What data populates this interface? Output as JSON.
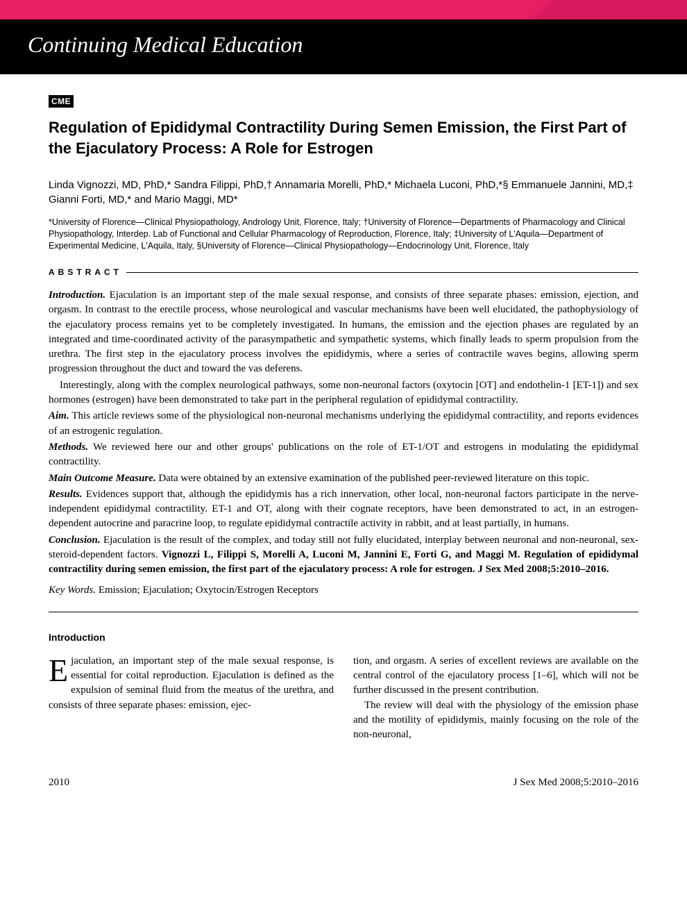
{
  "colors": {
    "pink": "#e91e63",
    "black": "#000000",
    "white": "#ffffff",
    "text": "#000000"
  },
  "header": {
    "section_title": "Continuing Medical Education",
    "font_family": "Georgia serif italic",
    "font_size_pt": 32
  },
  "badge": {
    "text": "CME",
    "bg": "#000000",
    "fg": "#ffffff"
  },
  "article": {
    "title": "Regulation of Epididymal Contractility During Semen Emission, the First Part of the Ejaculatory Process: A Role for Estrogen",
    "title_fontsize_pt": 22,
    "title_weight": "bold"
  },
  "authors_line": "Linda Vignozzi, MD, PhD,* Sandra Filippi, PhD,† Annamaria Morelli, PhD,* Michaela Luconi, PhD,*§ Emmanuele Jannini, MD,‡ Gianni Forti, MD,* and Mario Maggi, MD*",
  "affiliations": "*University of Florence—Clinical Physiopathology, Andrology Unit, Florence, Italy; †University of Florence—Departments of Pharmacology and Clinical Physiopathology, Interdep. Lab of Functional and Cellular Pharmacology of Reproduction, Florence, Italy; ‡University of L'Aquila—Department of Experimental Medicine, L'Aquila, Italy, §University of Florence—Clinical Physiopathology—Endocrinology Unit, Florence, Italy",
  "abstract": {
    "heading": "ABSTRACT",
    "sections": {
      "introduction_label": "Introduction.",
      "introduction_text": " Ejaculation is an important step of the male sexual response, and consists of three separate phases: emission, ejection, and orgasm. In contrast to the erectile process, whose neurological and vascular mechanisms have been well elucidated, the pathophysiology of the ejaculatory process remains yet to be completely investigated. In humans, the emission and the ejection phases are regulated by an integrated and time-coordinated activity of the parasympathetic and sympathetic systems, which finally leads to sperm propulsion from the urethra. The first step in the ejaculatory process involves the epididymis, where a series of contractile waves begins, allowing sperm progression throughout the duct and toward the vas deferens.",
      "introduction_para2": "Interestingly, along with the complex neurological pathways, some non-neuronal factors (oxytocin [OT] and endothelin-1 [ET-1]) and sex hormones (estrogen) have been demonstrated to take part in the peripheral regulation of epididymal contractility.",
      "aim_label": "Aim.",
      "aim_text": " This article reviews some of the physiological non-neuronal mechanisms underlying the epididymal contractility, and reports evidences of an estrogenic regulation.",
      "methods_label": "Methods.",
      "methods_text": " We reviewed here our and other groups' publications on the role of ET-1/OT and estrogens in modulating the epididymal contractility.",
      "outcome_label": "Main Outcome Measure.",
      "outcome_text": " Data were obtained by an extensive examination of the published peer-reviewed literature on this topic.",
      "results_label": "Results.",
      "results_text": " Evidences support that, although the epididymis has a rich innervation, other local, non-neuronal factors participate in the nerve-independent epididymal contractility. ET-1 and OT, along with their cognate receptors, have been demonstrated to act, in an estrogen-dependent autocrine and paracrine loop, to regulate epididymal contractile activity in rabbit, and at least partially, in humans.",
      "conclusion_label": "Conclusion.",
      "conclusion_text": " Ejaculation is the result of the complex, and today still not fully elucidated, interplay between neuronal and non-neuronal, sex-steroid-dependent factors. ",
      "citation": "Vignozzi L, Filippi S, Morelli A, Luconi M, Jannini E, Forti G, and Maggi M. Regulation of epididymal contractility during semen emission, the first part of the ejaculatory process: A role for estrogen. J Sex Med 2008;5:2010–2016."
    },
    "keywords_label": "Key Words.",
    "keywords_text": " Emission; Ejaculation; Oxytocin/Estrogen Receptors"
  },
  "body": {
    "intro_heading": "Introduction",
    "dropcap": "E",
    "col1_p1_rest": "jaculation, an important step of the male sexual response, is essential for coital reproduction. Ejaculation is defined as the expulsion of seminal fluid from the meatus of the urethra, and consists of three separate phases: emission, ejec-",
    "col2_p1": "tion, and orgasm. A series of excellent reviews are available on the central control of the ejaculatory process [1–6], which will not be further discussed in the present contribution.",
    "col2_p2": "The review will deal with the physiology of the emission phase and the motility of epididymis, mainly focusing on the role of the non-neuronal,"
  },
  "footer": {
    "page_number": "2010",
    "journal_ref": "J Sex Med 2008;5:2010–2016"
  },
  "typography": {
    "body_font": "Georgia serif",
    "body_size_pt": 15,
    "sans_font": "Arial",
    "affil_size_pt": 12.5
  }
}
